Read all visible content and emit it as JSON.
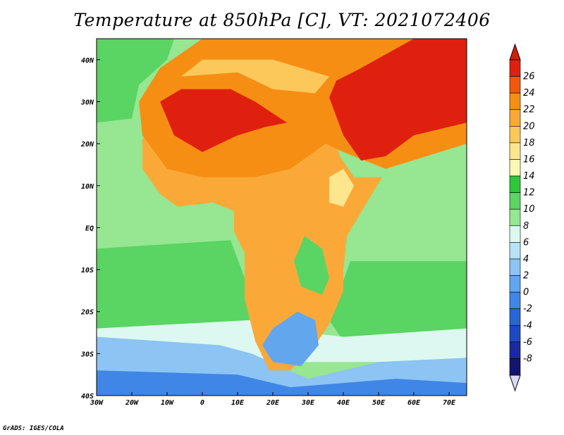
{
  "title": "Temperature at 850hPa [C], VT: 2021072406",
  "footer": "GrADS: IGES/COLA",
  "map": {
    "lon_range": [
      -30,
      75
    ],
    "lat_range": [
      -40,
      45
    ],
    "lon_ticks": [
      {
        "value": -30,
        "label": "30W"
      },
      {
        "value": -20,
        "label": "20W"
      },
      {
        "value": -10,
        "label": "10W"
      },
      {
        "value": 0,
        "label": "0"
      },
      {
        "value": 10,
        "label": "10E"
      },
      {
        "value": 20,
        "label": "20E"
      },
      {
        "value": 30,
        "label": "30E"
      },
      {
        "value": 40,
        "label": "40E"
      },
      {
        "value": 50,
        "label": "50E"
      },
      {
        "value": 60,
        "label": "60E"
      },
      {
        "value": 70,
        "label": "70E"
      }
    ],
    "lat_ticks": [
      {
        "value": 40,
        "label": "40N"
      },
      {
        "value": 30,
        "label": "30N"
      },
      {
        "value": 20,
        "label": "20N"
      },
      {
        "value": 10,
        "label": "10N"
      },
      {
        "value": 0,
        "label": "EQ"
      },
      {
        "value": -10,
        "label": "10S"
      },
      {
        "value": -20,
        "label": "20S"
      },
      {
        "value": -30,
        "label": "30S"
      },
      {
        "value": -40,
        "label": "40S"
      }
    ]
  },
  "colorbar": {
    "levels": [
      "26",
      "24",
      "22",
      "20",
      "18",
      "16",
      "14",
      "12",
      "10",
      "8",
      "6",
      "4",
      "2",
      "0",
      "-2",
      "-4",
      "-6",
      "-8"
    ],
    "colors": [
      "#e0200e",
      "#f0580e",
      "#f78e14",
      "#faa938",
      "#fcc85a",
      "#fde68e",
      "#fbf7b4",
      "#2fc63c",
      "#5ad462",
      "#96e692",
      "#dcf8f0",
      "#b7e2f8",
      "#8cc4f4",
      "#62a6ee",
      "#3f86e6",
      "#2666d6",
      "#1d49c2",
      "#1a2a9e",
      "#141470"
    ],
    "top_color": "#d81c0a",
    "bottom_color": "#d8d8f8"
  },
  "regions": [
    {
      "name": "ocean-cool-background",
      "color": "#96e692",
      "points": [
        [
          -30,
          45
        ],
        [
          75,
          45
        ],
        [
          75,
          -40
        ],
        [
          -30,
          -40
        ]
      ]
    },
    {
      "name": "south-atlantic-band",
      "color": "#5ad462",
      "points": [
        [
          -30,
          -5
        ],
        [
          8,
          -3
        ],
        [
          12,
          -12
        ],
        [
          14,
          -22
        ],
        [
          10,
          -25
        ],
        [
          -30,
          -26
        ]
      ]
    },
    {
      "name": "indian-ocean-band",
      "color": "#5ad462",
      "points": [
        [
          42,
          -8
        ],
        [
          75,
          -8
        ],
        [
          75,
          -25
        ],
        [
          40,
          -27
        ],
        [
          36,
          -22
        ]
      ]
    },
    {
      "name": "southern-ocean-light",
      "color": "#dcf8f0",
      "points": [
        [
          -30,
          -24
        ],
        [
          14,
          -22
        ],
        [
          20,
          -24
        ],
        [
          40,
          -26
        ],
        [
          75,
          -24
        ],
        [
          75,
          -32
        ],
        [
          -30,
          -32
        ]
      ]
    },
    {
      "name": "southern-ocean-blue",
      "color": "#8cc4f4",
      "points": [
        [
          -30,
          -26
        ],
        [
          5,
          -28
        ],
        [
          14,
          -30
        ],
        [
          30,
          -36
        ],
        [
          50,
          -32
        ],
        [
          75,
          -31
        ],
        [
          75,
          -40
        ],
        [
          -30,
          -40
        ]
      ]
    },
    {
      "name": "southern-ocean-deep",
      "color": "#3f86e6",
      "points": [
        [
          -30,
          -34
        ],
        [
          10,
          -35
        ],
        [
          25,
          -38
        ],
        [
          55,
          -36
        ],
        [
          75,
          -37
        ],
        [
          75,
          -40
        ],
        [
          -30,
          -40
        ]
      ]
    },
    {
      "name": "africa-land-warm",
      "color": "#faa938",
      "points": [
        [
          -17,
          21
        ],
        [
          -17,
          14
        ],
        [
          -12,
          8
        ],
        [
          -7,
          5
        ],
        [
          3,
          6
        ],
        [
          9,
          4
        ],
        [
          9,
          -1
        ],
        [
          12,
          -6
        ],
        [
          12,
          -17
        ],
        [
          15,
          -27
        ],
        [
          19,
          -34
        ],
        [
          25,
          -34
        ],
        [
          32,
          -28
        ],
        [
          36,
          -23
        ],
        [
          40,
          -15
        ],
        [
          40,
          -10
        ],
        [
          41,
          -2
        ],
        [
          51,
          12
        ],
        [
          43,
          12
        ],
        [
          39,
          17
        ],
        [
          35,
          28
        ],
        [
          32,
          31
        ],
        [
          20,
          32
        ],
        [
          10,
          37
        ],
        [
          0,
          36
        ],
        [
          -6,
          36
        ],
        [
          -10,
          30
        ],
        [
          -14,
          26
        ]
      ]
    },
    {
      "name": "sahel-hot",
      "color": "#f78e14",
      "points": [
        [
          -17,
          22
        ],
        [
          -10,
          14
        ],
        [
          0,
          12
        ],
        [
          15,
          12
        ],
        [
          25,
          14
        ],
        [
          35,
          20
        ],
        [
          40,
          18
        ],
        [
          52,
          14
        ],
        [
          75,
          20
        ],
        [
          75,
          45
        ],
        [
          0,
          45
        ],
        [
          -12,
          38
        ],
        [
          -18,
          30
        ]
      ]
    },
    {
      "name": "sahara-core",
      "color": "#e0200e",
      "points": [
        [
          -12,
          30
        ],
        [
          -8,
          22
        ],
        [
          0,
          18
        ],
        [
          10,
          22
        ],
        [
          18,
          24
        ],
        [
          24,
          25
        ],
        [
          15,
          30
        ],
        [
          8,
          33
        ],
        [
          0,
          33
        ],
        [
          -6,
          33
        ]
      ]
    },
    {
      "name": "arabia-core",
      "color": "#e0200e",
      "points": [
        [
          36,
          31
        ],
        [
          40,
          22
        ],
        [
          45,
          16
        ],
        [
          52,
          17
        ],
        [
          60,
          22
        ],
        [
          75,
          25
        ],
        [
          75,
          45
        ],
        [
          60,
          45
        ],
        [
          45,
          38
        ],
        [
          38,
          35
        ]
      ]
    },
    {
      "name": "east-africa-cool",
      "color": "#5ad462",
      "points": [
        [
          29,
          -2
        ],
        [
          34,
          -5
        ],
        [
          36,
          -12
        ],
        [
          34,
          -16
        ],
        [
          28,
          -14
        ],
        [
          26,
          -8
        ]
      ]
    },
    {
      "name": "southern-africa-cool",
      "color": "#62a6ee",
      "points": [
        [
          20,
          -24
        ],
        [
          27,
          -20
        ],
        [
          32,
          -22
        ],
        [
          33,
          -28
        ],
        [
          28,
          -33
        ],
        [
          20,
          -32
        ],
        [
          17,
          -28
        ]
      ]
    },
    {
      "name": "ethiopian-highlands",
      "color": "#fde68e",
      "points": [
        [
          36,
          12
        ],
        [
          40,
          14
        ],
        [
          43,
          10
        ],
        [
          40,
          5
        ],
        [
          36,
          6
        ]
      ]
    },
    {
      "name": "madagascar",
      "color": "#5ad462",
      "points": [
        [
          44,
          -12
        ],
        [
          50,
          -13
        ],
        [
          50,
          -24
        ],
        [
          45,
          -25
        ],
        [
          43,
          -18
        ]
      ]
    },
    {
      "name": "mediterranean-band",
      "color": "#fcc85a",
      "points": [
        [
          -6,
          36
        ],
        [
          10,
          37
        ],
        [
          20,
          33
        ],
        [
          32,
          32
        ],
        [
          36,
          36
        ],
        [
          20,
          40
        ],
        [
          0,
          40
        ]
      ]
    },
    {
      "name": "north-atlantic-green",
      "color": "#5ad462",
      "points": [
        [
          -30,
          45
        ],
        [
          -8,
          45
        ],
        [
          -10,
          40
        ],
        [
          -18,
          34
        ],
        [
          -20,
          26
        ],
        [
          -30,
          25
        ]
      ]
    }
  ]
}
